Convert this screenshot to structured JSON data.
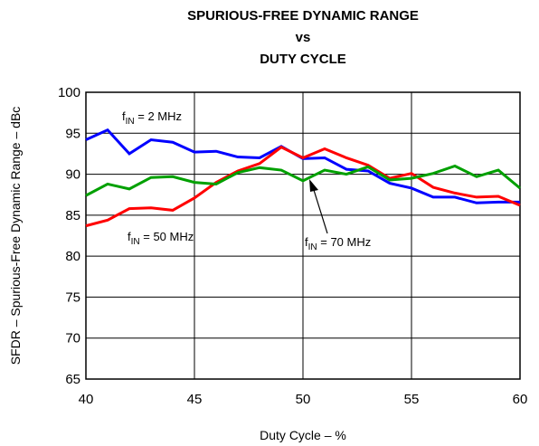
{
  "chart_data": {
    "type": "line",
    "title": [
      "SPURIOUS-FREE DYNAMIC RANGE",
      "vs",
      "DUTY CYCLE"
    ],
    "x_label": "Duty Cycle – %",
    "y_label": "SFDR – Spurious-Free Dynamic Range – dBc",
    "x": [
      40,
      41,
      42,
      43,
      44,
      45,
      46,
      47,
      48,
      49,
      50,
      51,
      52,
      53,
      54,
      55,
      56,
      57,
      58,
      59,
      60
    ],
    "series": [
      {
        "color": "#0000ff",
        "values": [
          94.2,
          95.4,
          92.5,
          94.2,
          93.9,
          92.7,
          92.8,
          92.1,
          92.0,
          93.4,
          91.9,
          92.0,
          90.6,
          90.4,
          88.9,
          88.3,
          87.2,
          87.2,
          86.5,
          86.6,
          86.6
        ]
      },
      {
        "color": "#ff0000",
        "values": [
          83.7,
          84.4,
          85.8,
          85.9,
          85.6,
          87.1,
          89.0,
          90.4,
          91.3,
          93.3,
          92.0,
          93.1,
          92.0,
          91.1,
          89.5,
          90.1,
          88.4,
          87.7,
          87.2,
          87.3,
          86.2
        ]
      },
      {
        "color": "#00a000",
        "values": [
          87.4,
          88.8,
          88.2,
          89.6,
          89.7,
          89.0,
          88.8,
          90.2,
          90.8,
          90.5,
          89.2,
          90.5,
          90.0,
          90.9,
          89.3,
          89.5,
          90.1,
          91.0,
          89.7,
          90.5,
          88.3
        ]
      }
    ],
    "annotations": [
      {
        "base": "f",
        "sub": "IN",
        "text": " = 2 MHz"
      },
      {
        "base": "f",
        "sub": "IN",
        "text": " = 50 MHz"
      },
      {
        "base": "f",
        "sub": "IN",
        "text": " = 70 MHz"
      }
    ],
    "xlim": [
      40,
      60
    ],
    "xticks": [
      40,
      45,
      50,
      55,
      60
    ],
    "ylim": [
      65,
      100
    ],
    "yticks": [
      65,
      70,
      75,
      80,
      85,
      90,
      95,
      100
    ],
    "grid": true
  }
}
